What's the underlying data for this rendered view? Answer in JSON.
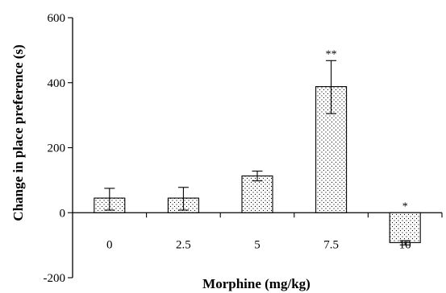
{
  "chart_data": {
    "type": "bar",
    "xlabel": "Morphine (mg/kg)",
    "ylabel": "Change in place preference (s)",
    "categories": [
      "0",
      "2.5",
      "5",
      "7.5",
      "10"
    ],
    "values": [
      45,
      45,
      113,
      388,
      -92
    ],
    "error_upper": [
      75,
      78,
      128,
      468,
      -86
    ],
    "error_lower": [
      8,
      8,
      98,
      305,
      -99
    ],
    "significance": [
      "",
      "",
      "",
      "**",
      "*"
    ],
    "ylim": [
      -200,
      600
    ],
    "yticks": [
      "-200",
      "0",
      "200",
      "400",
      "600"
    ],
    "ytick_values": [
      -200,
      0,
      200,
      400,
      600
    ],
    "grid": false,
    "bar_fill": "dotted pattern",
    "colors": {
      "bar_stroke": "#000000",
      "dots": "#000000",
      "background": "#ffffff"
    }
  }
}
